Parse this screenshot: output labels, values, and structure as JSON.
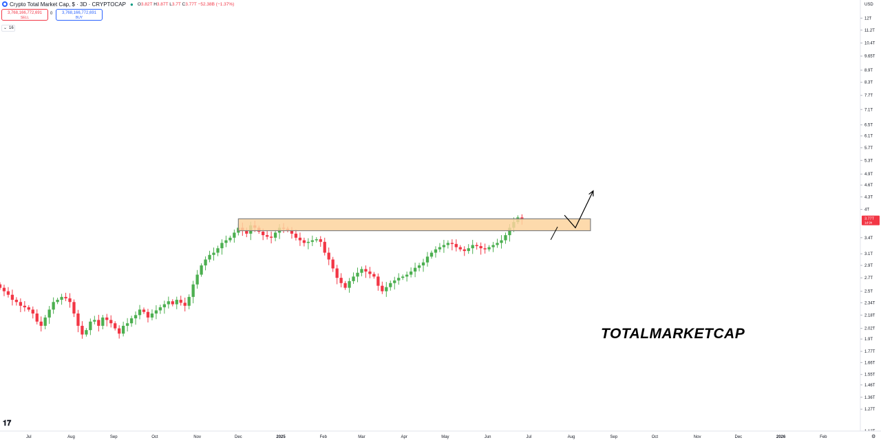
{
  "header": {
    "symbol": "Crypto Total Market Cap, $ · 3D · CRYPTOCAP",
    "ohlc": [
      {
        "key": "O",
        "value": "3.82T"
      },
      {
        "key": "H",
        "value": "3.87T"
      },
      {
        "key": "L",
        "value": "3.7T"
      },
      {
        "key": "C",
        "value": "3.77T"
      },
      {
        "key": "",
        "value": "−52.38B (−1.37%)"
      }
    ],
    "sell_price": "3,768,166,772,691",
    "sell_label": "SELL",
    "buy_price": "3,768,166,772,691",
    "buy_label": "BUY",
    "spread": "0",
    "indicator_count": "16"
  },
  "colors": {
    "up": "#089981",
    "up_fill": "#4caf50",
    "down": "#f23645",
    "zone_fill": "#fdd49e",
    "zone_border": "#7f7f7f",
    "price_label": "#f23645"
  },
  "annotation": "TOTALMARKETCAP",
  "brand_icon": "tradingview-logo-icon",
  "chart_data": {
    "type": "candlestick",
    "title": "Crypto Total Market Cap, $ · 3D · CRYPTOCAP",
    "y_unit_label": "USD",
    "y_scale": "log",
    "ylim": [
      1.12,
      12.6
    ],
    "x_range": [
      "2024-06-10",
      "2026-02-28"
    ],
    "x_ticks": [
      {
        "date": "2024-07-01",
        "label": "Jul"
      },
      {
        "date": "2024-08-01",
        "label": "Aug"
      },
      {
        "date": "2024-09-01",
        "label": "Sep"
      },
      {
        "date": "2024-10-01",
        "label": "Oct"
      },
      {
        "date": "2024-11-01",
        "label": "Nov"
      },
      {
        "date": "2024-12-01",
        "label": "Dec"
      },
      {
        "date": "2025-01-01",
        "label": "2025"
      },
      {
        "date": "2025-02-01",
        "label": "Feb"
      },
      {
        "date": "2025-03-01",
        "label": "Mar"
      },
      {
        "date": "2025-04-01",
        "label": "Apr"
      },
      {
        "date": "2025-05-01",
        "label": "May"
      },
      {
        "date": "2025-06-01",
        "label": "Jun"
      },
      {
        "date": "2025-07-01",
        "label": "Jul"
      },
      {
        "date": "2025-08-01",
        "label": "Aug"
      },
      {
        "date": "2025-09-01",
        "label": "Sep"
      },
      {
        "date": "2025-10-01",
        "label": "Oct"
      },
      {
        "date": "2025-11-01",
        "label": "Nov"
      },
      {
        "date": "2025-12-01",
        "label": "Dec"
      },
      {
        "date": "2026-01-01",
        "label": "2026"
      },
      {
        "date": "2026-02-01",
        "label": "Feb"
      }
    ],
    "y_ticks": [
      "12T",
      "11.2T",
      "10.4T",
      "9.65T",
      "8.9T",
      "8.3T",
      "7.7T",
      "7.1T",
      "6.5T",
      "6.1T",
      "5.7T",
      "5.3T",
      "4.9T",
      "4.6T",
      "4.3T",
      "4T",
      "3.4T",
      "3.1T",
      "2.9T",
      "2.7T",
      "2.5T",
      "2.34T",
      "2.18T",
      "2.02T",
      "1.9T",
      "1.77T",
      "1.66T",
      "1.55T",
      "1.46T",
      "1.36T",
      "1.27T",
      "1.12T"
    ],
    "y_tick_values": [
      12,
      11.2,
      10.4,
      9.65,
      8.9,
      8.3,
      7.7,
      7.1,
      6.5,
      6.1,
      5.7,
      5.3,
      4.9,
      4.6,
      4.3,
      4.0,
      3.4,
      3.1,
      2.9,
      2.7,
      2.5,
      2.34,
      2.18,
      2.02,
      1.9,
      1.77,
      1.66,
      1.55,
      1.46,
      1.36,
      1.27,
      1.12
    ],
    "last_price": {
      "value": 3.77,
      "label": "3.77T",
      "sub": "1d 9h"
    },
    "resistance_zone": {
      "from_date": "2024-12-01",
      "to_date": "2025-08-15",
      "low": 3.54,
      "high": 3.79
    },
    "projection_path": [
      {
        "date": "2025-07-27",
        "value": 3.87
      },
      {
        "date": "2025-08-04",
        "value": 3.6
      },
      {
        "date": "2025-08-17",
        "value": 4.45
      }
    ],
    "breakout_path": [
      {
        "date": "2025-07-17",
        "value": 3.36
      },
      {
        "date": "2025-07-22",
        "value": 3.62
      }
    ],
    "closes": [
      2.55,
      2.5,
      2.45,
      2.38,
      2.35,
      2.3,
      2.28,
      2.25,
      2.2,
      2.1,
      2.05,
      2.15,
      2.25,
      2.35,
      2.38,
      2.42,
      2.4,
      2.35,
      2.2,
      2.05,
      1.95,
      2.0,
      2.1,
      2.12,
      2.05,
      2.15,
      2.12,
      2.08,
      2.02,
      1.96,
      2.05,
      2.08,
      2.14,
      2.18,
      2.25,
      2.22,
      2.15,
      2.2,
      2.24,
      2.28,
      2.32,
      2.36,
      2.32,
      2.38,
      2.34,
      2.3,
      2.42,
      2.6,
      2.75,
      2.9,
      3.0,
      3.08,
      3.12,
      3.2,
      3.3,
      3.35,
      3.4,
      3.5,
      3.6,
      3.55,
      3.48,
      3.65,
      3.6,
      3.52,
      3.45,
      3.42,
      3.4,
      3.5,
      3.6,
      3.58,
      3.55,
      3.48,
      3.4,
      3.35,
      3.3,
      3.32,
      3.35,
      3.37,
      3.32,
      3.12,
      3.0,
      2.85,
      2.7,
      2.62,
      2.55,
      2.65,
      2.72,
      2.78,
      2.84,
      2.8,
      2.76,
      2.72,
      2.58,
      2.5,
      2.56,
      2.62,
      2.66,
      2.7,
      2.72,
      2.75,
      2.8,
      2.86,
      2.9,
      2.95,
      3.05,
      3.12,
      3.18,
      3.22,
      3.26,
      3.3,
      3.28,
      3.22,
      3.18,
      3.15,
      3.2,
      3.26,
      3.24,
      3.2,
      3.18,
      3.22,
      3.26,
      3.3,
      3.35,
      3.45,
      3.6,
      3.72,
      3.82,
      3.77
    ],
    "candle_start": "2024-06-10",
    "candle_interval_days": 3
  }
}
